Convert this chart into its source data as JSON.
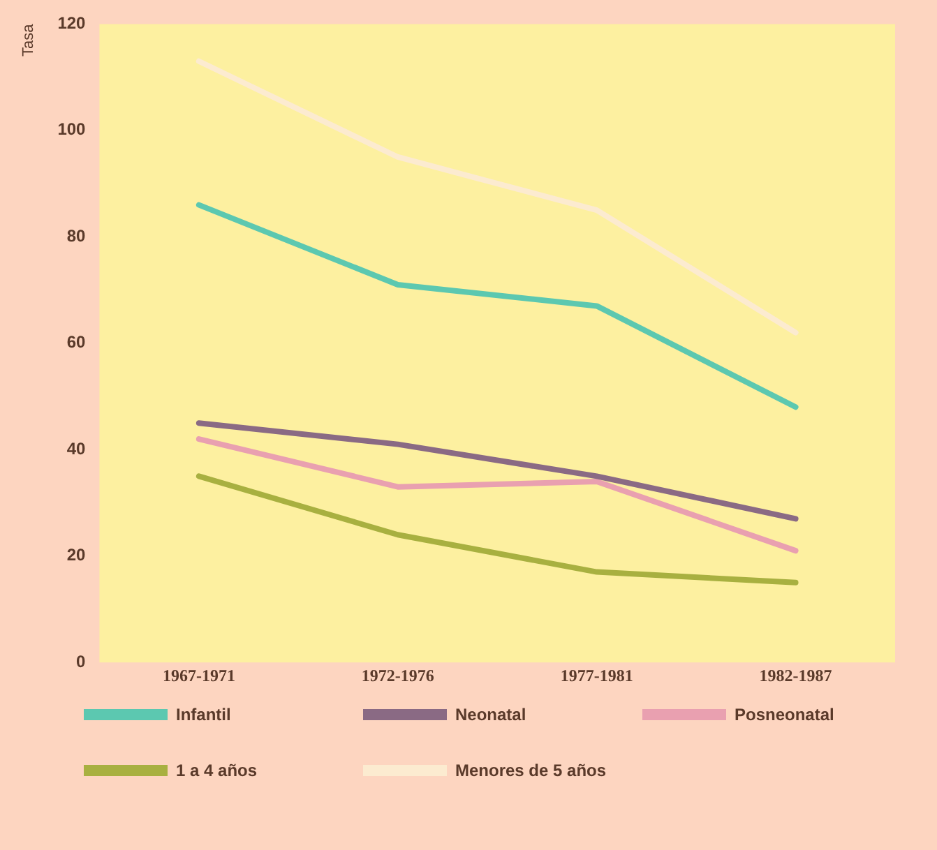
{
  "chart_data": {
    "type": "line",
    "ylabel": "Tasa",
    "categories": [
      "1967-1971",
      "1972-1976",
      "1977-1981",
      "1982-1987"
    ],
    "series": [
      {
        "name": "Infantil",
        "color": "#5cc8b0",
        "values": [
          86,
          71,
          67,
          48
        ]
      },
      {
        "name": "Neonatal",
        "color": "#8a6a84",
        "values": [
          45,
          41,
          35,
          27
        ]
      },
      {
        "name": "Posneonatal",
        "color": "#e9a0b0",
        "values": [
          42,
          33,
          34,
          21
        ]
      },
      {
        "name": "1 a 4 años",
        "color": "#a8b040",
        "values": [
          35,
          24,
          17,
          15
        ]
      },
      {
        "name": "Menores de 5 años",
        "color": "#fcebd0",
        "values": [
          113,
          95,
          85,
          62
        ]
      }
    ],
    "ylim": [
      0,
      120
    ],
    "yticks": [
      0,
      20,
      40,
      60,
      80,
      100,
      120
    ],
    "grid": false,
    "legend": "bottom",
    "marker": "none",
    "line_style": "solid"
  }
}
